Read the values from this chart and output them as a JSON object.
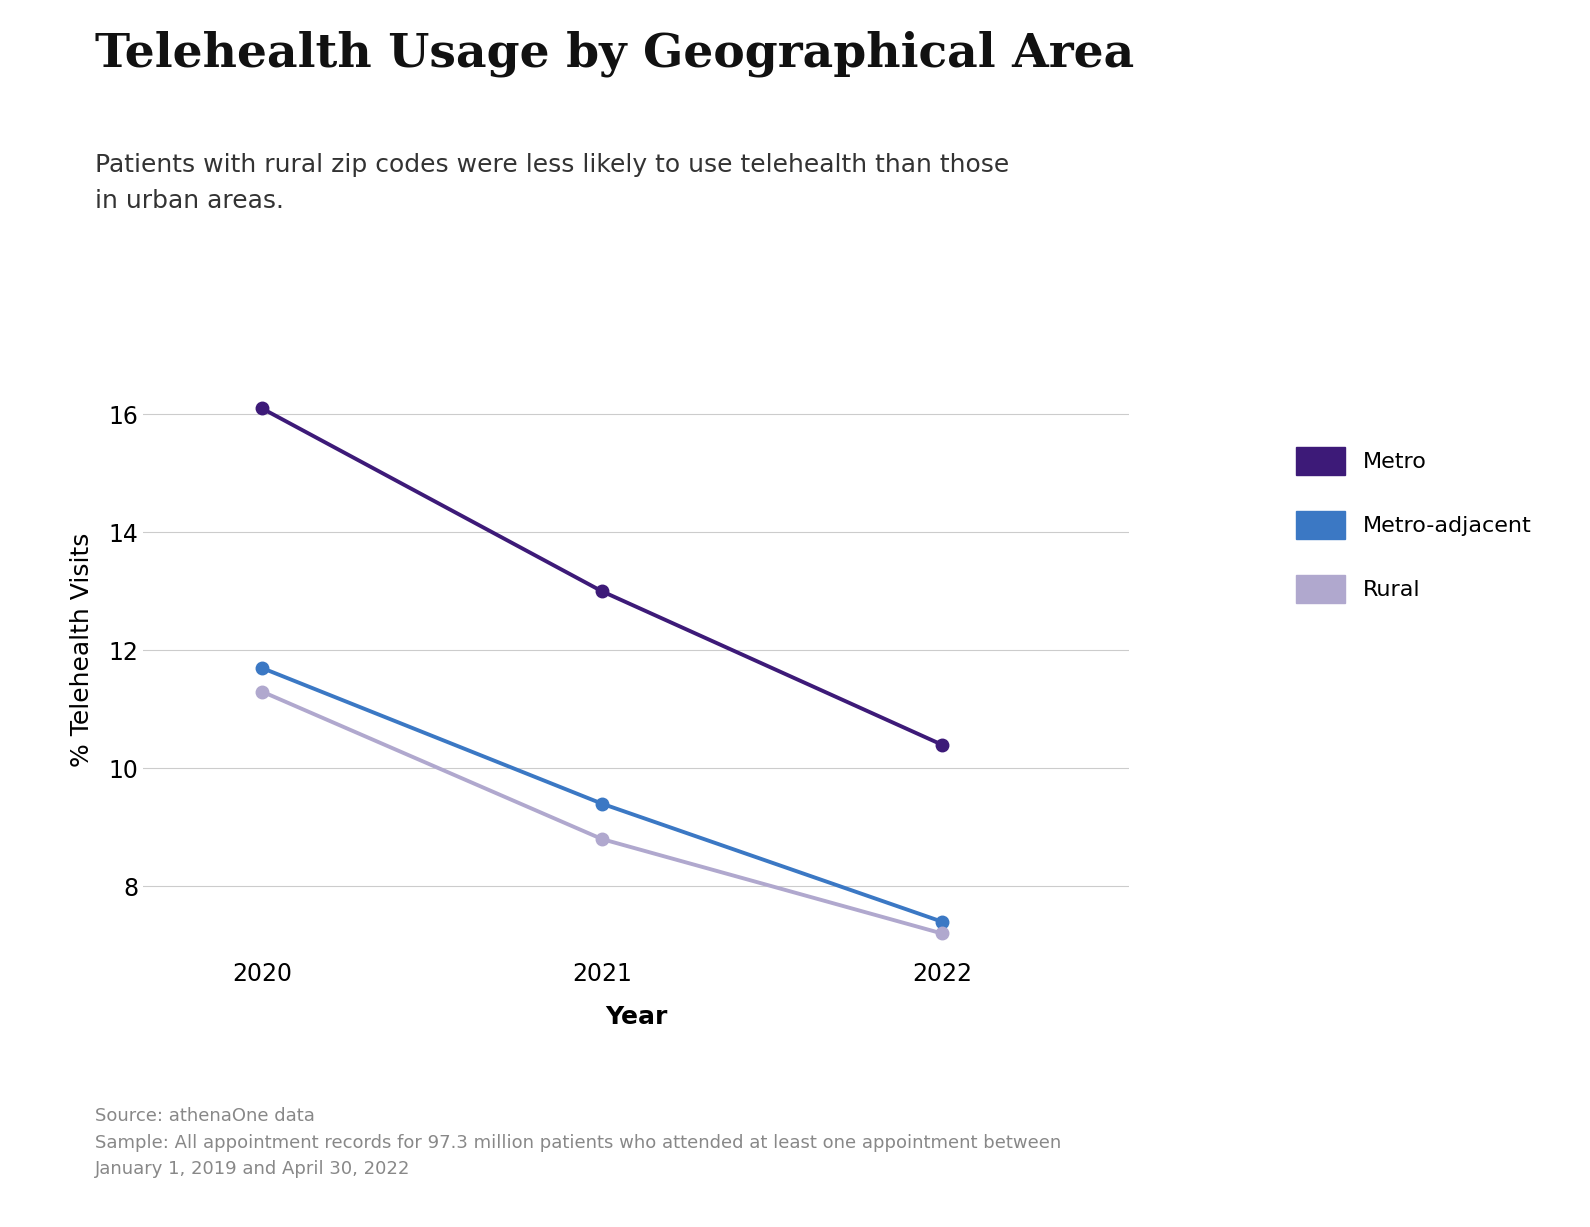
{
  "title": "Telehealth Usage by Geographical Area",
  "subtitle": "Patients with rural zip codes were less likely to use telehealth than those\nin urban areas.",
  "xlabel": "Year",
  "ylabel": "% Telehealth Visits",
  "years": [
    0,
    1,
    2
  ],
  "xtick_labels": [
    "2020",
    "2021",
    "2022"
  ],
  "metro": [
    16.1,
    13.0,
    10.4
  ],
  "metro_adjacent": [
    11.7,
    9.4,
    7.4
  ],
  "rural": [
    11.3,
    8.8,
    7.2
  ],
  "metro_color": "#3d1a78",
  "metro_adjacent_color": "#3b78c4",
  "rural_color": "#b0a8ce",
  "ylim": [
    6.8,
    17.2
  ],
  "yticks": [
    8,
    10,
    12,
    14,
    16
  ],
  "xlim": [
    -0.35,
    2.55
  ],
  "legend_labels": [
    "Metro",
    "Metro-adjacent",
    "Rural"
  ],
  "source_text": "Source: athenaOne data\nSample: All appointment records for 97.3 million patients who attended at least one appointment between\nJanuary 1, 2019 and April 30, 2022",
  "background_color": "#ffffff",
  "title_fontsize": 34,
  "subtitle_fontsize": 18,
  "axis_label_fontsize": 18,
  "tick_fontsize": 17,
  "legend_fontsize": 16,
  "source_fontsize": 13,
  "line_width": 2.8,
  "marker_size": 9
}
